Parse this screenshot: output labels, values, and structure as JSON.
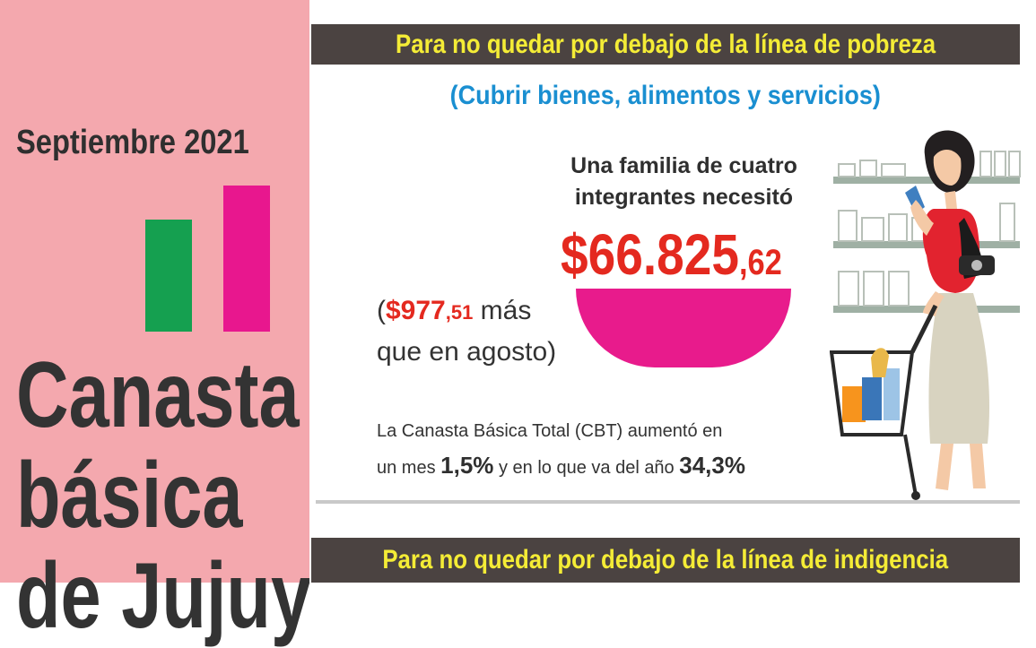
{
  "left": {
    "month": "Septiembre 2021",
    "title_lines": [
      "Canasta",
      "básica",
      "de Jujuy"
    ]
  },
  "colors": {
    "left_bg": "#f4a8ae",
    "green_bar": "#15a050",
    "pink_bar": "#e8178e",
    "banner_bg": "#4b4341",
    "banner_text": "#f4ec36",
    "subtitle": "#1a8fd1",
    "price": "#e4291f"
  },
  "poverty": {
    "banner": "Para no quedar por debajo de la línea de pobreza",
    "subtitle": "(Cubrir bienes, alimentos y servicios)",
    "family_line1": "Una familia de cuatro",
    "family_line2": "integrantes necesitó",
    "price_main": "$66.825",
    "price_cents": ",62",
    "diff_open": "(",
    "diff_amount": "$977",
    "diff_cents": ",51",
    "diff_more": " más",
    "diff_line2": "que en agosto)",
    "cbt_line1": "La Canasta Básica Total (CBT) aumentó en",
    "cbt_prefix": "un mes ",
    "cbt_month_pct": "1,5%",
    "cbt_middle": " y en lo que va del año ",
    "cbt_year_pct": "34,3%"
  },
  "indigence": {
    "banner": "Para no quedar por debajo de la línea de indigencia"
  },
  "illustration": {
    "icon": "woman-shopping-cart-illustration"
  }
}
